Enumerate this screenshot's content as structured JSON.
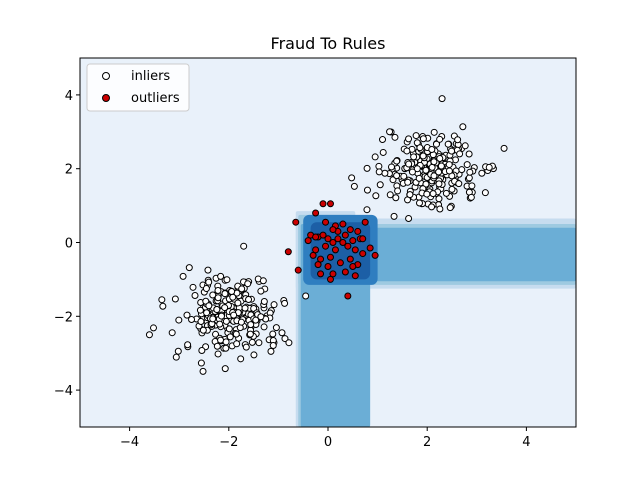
{
  "chart_data": {
    "type": "scatter",
    "title": "Fraud To Rules",
    "xlabel": "",
    "ylabel": "",
    "xlim": [
      -5,
      5
    ],
    "ylim": [
      -5,
      5
    ],
    "xticks": [
      -4,
      -2,
      0,
      2,
      4
    ],
    "yticks": [
      -4,
      -2,
      0,
      2,
      4
    ],
    "xtick_labels": [
      "−4",
      "−2",
      "0",
      "2",
      "4"
    ],
    "ytick_labels": [
      "−4",
      "−2",
      "0",
      "2",
      "4"
    ],
    "grid": false,
    "legend": {
      "position": "top-left",
      "entries": [
        "inliers",
        "outliers"
      ]
    },
    "background_color": "#e9f1fa",
    "contour_colors": [
      "#c6dcef",
      "#9ecae1",
      "#6baed6",
      "#2f7ec0",
      "#1c5fa6"
    ],
    "decision_regions": [
      {
        "level": 1,
        "rects": [
          [
            -0.65,
            0.55,
            -5.0,
            0.85
          ],
          [
            -0.65,
            5.0,
            -1.25,
            0.65
          ]
        ]
      },
      {
        "level": 2,
        "rects": [
          [
            -0.6,
            0.5,
            -5.0,
            0.75
          ],
          [
            -0.6,
            5.0,
            -1.15,
            0.5
          ]
        ]
      },
      {
        "level": 3,
        "rects": [
          [
            -0.55,
            0.85,
            -5.0,
            0.5
          ],
          [
            -0.5,
            5.0,
            -1.05,
            0.4
          ]
        ]
      },
      {
        "level": 4,
        "rects": [
          [
            -0.5,
            1.0,
            -1.15,
            0.75
          ]
        ]
      },
      {
        "level": 5,
        "rects": [
          [
            -0.35,
            0.85,
            -1.0,
            0.55
          ]
        ]
      }
    ],
    "series": [
      {
        "name": "inliers",
        "color": "#ffffff",
        "edge_color": "#000000",
        "clusters": [
          {
            "center": [
              -2.0,
              -2.0
            ],
            "spread": 0.5,
            "count": 250
          },
          {
            "center": [
              2.0,
              2.0
            ],
            "spread": 0.5,
            "count": 250
          }
        ],
        "extra_points": [
          [
            -3.6,
            -2.5
          ],
          [
            -1.7,
            -0.1
          ],
          [
            2.3,
            3.9
          ],
          [
            3.55,
            2.55
          ],
          [
            -0.45,
            -1.45
          ],
          [
            -3.35,
            -1.55
          ],
          [
            -1.15,
            -2.95
          ]
        ]
      },
      {
        "name": "outliers",
        "color": "#cc0000",
        "edge_color": "#000000",
        "points": [
          [
            -0.65,
            0.55
          ],
          [
            -0.25,
            0.8
          ],
          [
            -0.1,
            1.05
          ],
          [
            0.05,
            1.05
          ],
          [
            -0.8,
            -0.25
          ],
          [
            -0.6,
            -0.75
          ],
          [
            -0.35,
            0.2
          ],
          [
            -0.2,
            0.15
          ],
          [
            -0.1,
            0.2
          ],
          [
            0.0,
            0.1
          ],
          [
            -0.05,
            -0.1
          ],
          [
            0.1,
            0.0
          ],
          [
            0.15,
            -0.2
          ],
          [
            0.2,
            0.3
          ],
          [
            0.3,
            0.0
          ],
          [
            0.35,
            0.2
          ],
          [
            0.4,
            -0.1
          ],
          [
            0.5,
            0.05
          ],
          [
            0.55,
            -0.2
          ],
          [
            0.6,
            0.3
          ],
          [
            0.65,
            0.1
          ],
          [
            0.7,
            -0.3
          ],
          [
            0.75,
            0.55
          ],
          [
            0.85,
            -0.15
          ],
          [
            -0.25,
            0.15
          ],
          [
            -0.3,
            -0.35
          ],
          [
            -0.15,
            -0.45
          ],
          [
            0.05,
            -0.4
          ],
          [
            0.25,
            -0.55
          ],
          [
            0.45,
            -0.45
          ],
          [
            0.6,
            -0.6
          ],
          [
            -0.2,
            -0.6
          ],
          [
            0.0,
            -0.65
          ],
          [
            0.15,
            0.45
          ],
          [
            0.3,
            0.5
          ],
          [
            -0.05,
            0.55
          ],
          [
            0.45,
            0.35
          ],
          [
            0.1,
            -0.85
          ],
          [
            -0.15,
            -0.85
          ],
          [
            0.35,
            -0.8
          ],
          [
            0.55,
            -0.9
          ],
          [
            0.05,
            -1.0
          ],
          [
            0.4,
            -1.45
          ],
          [
            0.95,
            -0.35
          ],
          [
            -0.4,
            0.05
          ],
          [
            0.2,
            0.1
          ],
          [
            0.7,
            0.1
          ],
          [
            0.5,
            -0.65
          ],
          [
            -0.25,
            -0.2
          ],
          [
            0.1,
            0.35
          ]
        ]
      }
    ]
  }
}
